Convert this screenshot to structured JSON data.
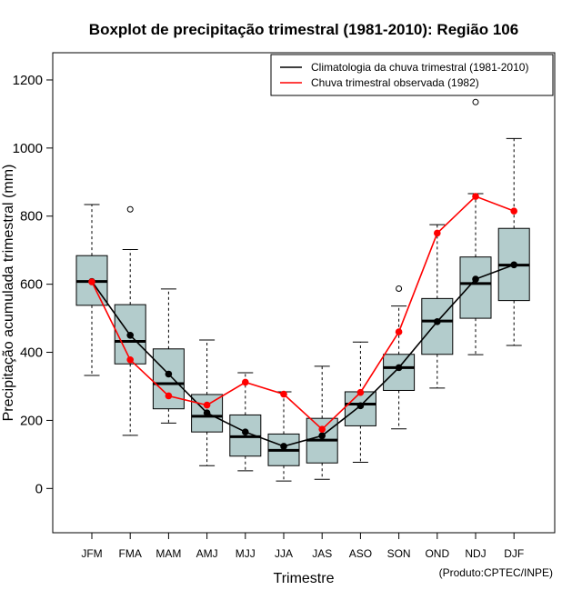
{
  "chart_data": {
    "type": "boxplot",
    "title": "Boxplot de precipitação trimestral (1981-2010): Região 106",
    "xlabel": "Trimestre",
    "ylabel": "Precipitação acumulada trimestral (mm)",
    "credit": "(Produto:CPTEC/INPE)",
    "ylim": [
      -130,
      1280
    ],
    "yticks": [
      "0",
      "200",
      "400",
      "600",
      "800",
      "1000",
      "1200"
    ],
    "categories": [
      "JFM",
      "FMA",
      "MAM",
      "AMJ",
      "MJJ",
      "JJA",
      "JAS",
      "ASO",
      "SON",
      "OND",
      "NDJ",
      "DJF"
    ],
    "boxes": [
      {
        "min": 332,
        "q1": 538,
        "median": 608,
        "q3": 684,
        "max": 834,
        "outliers": []
      },
      {
        "min": 156,
        "q1": 366,
        "median": 432,
        "q3": 540,
        "max": 702,
        "outliers": [
          820
        ]
      },
      {
        "min": 192,
        "q1": 234,
        "median": 308,
        "q3": 410,
        "max": 586,
        "outliers": []
      },
      {
        "min": 67,
        "q1": 166,
        "median": 212,
        "q3": 276,
        "max": 436,
        "outliers": []
      },
      {
        "min": 52,
        "q1": 95,
        "median": 152,
        "q3": 216,
        "max": 340,
        "outliers": []
      },
      {
        "min": 22,
        "q1": 67,
        "median": 112,
        "q3": 160,
        "max": 284,
        "outliers": []
      },
      {
        "min": 27,
        "q1": 75,
        "median": 142,
        "q3": 206,
        "max": 359,
        "outliers": []
      },
      {
        "min": 77,
        "q1": 184,
        "median": 248,
        "q3": 284,
        "max": 430,
        "outliers": []
      },
      {
        "min": 175,
        "q1": 288,
        "median": 355,
        "q3": 394,
        "max": 536,
        "outliers": [
          587
        ]
      },
      {
        "min": 295,
        "q1": 394,
        "median": 492,
        "q3": 558,
        "max": 775,
        "outliers": []
      },
      {
        "min": 393,
        "q1": 500,
        "median": 602,
        "q3": 680,
        "max": 866,
        "outliers": [
          1135
        ]
      },
      {
        "min": 420,
        "q1": 552,
        "median": 656,
        "q3": 764,
        "max": 1028,
        "outliers": []
      }
    ],
    "series": [
      {
        "name": "Climatologia da chuva trimestral (1981-2010)",
        "color": "#000000",
        "values": [
          608,
          450,
          336,
          222,
          166,
          124,
          155,
          243,
          355,
          490,
          615,
          657
        ]
      },
      {
        "name": "Chuva trimestral observada (1982)",
        "color": "#ff0000",
        "values": [
          607,
          378,
          272,
          245,
          312,
          277,
          174,
          282,
          460,
          750,
          858,
          815
        ]
      }
    ],
    "box_fill": "#b3cccc",
    "legend_position": "top-right"
  }
}
